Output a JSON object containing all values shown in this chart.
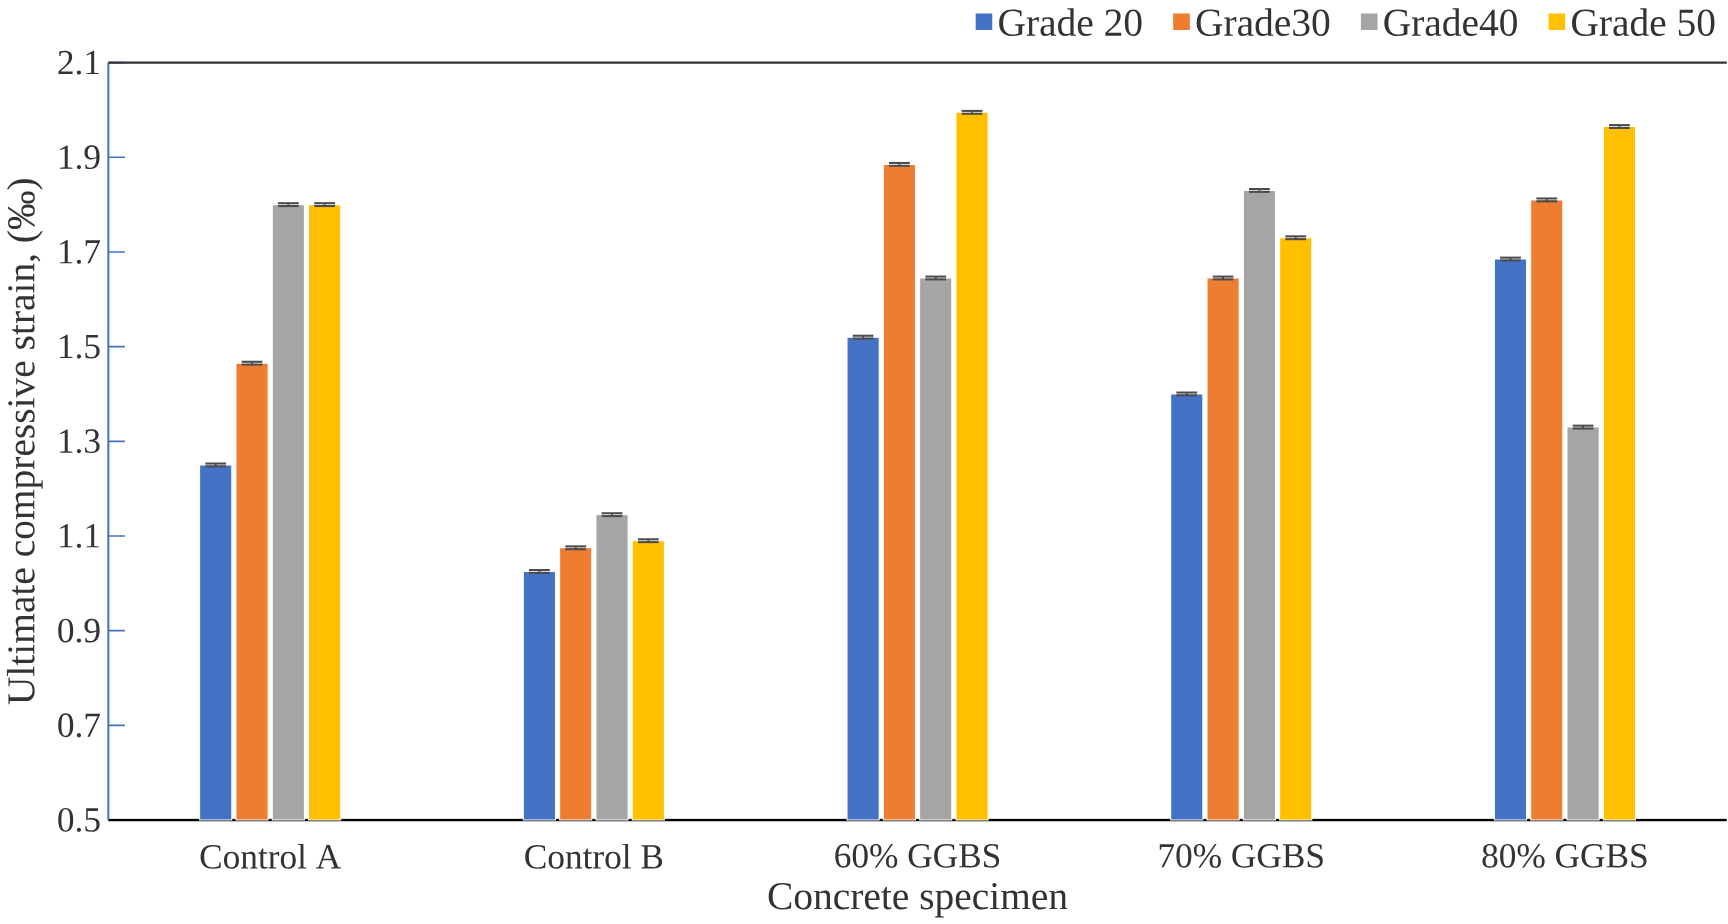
{
  "chart_data": {
    "type": "bar",
    "xlabel": "Concrete specimen",
    "ylabel": "Ultimate compressive strain, (‰)",
    "categories": [
      "Control  A",
      "Control B",
      "60% GGBS",
      "70% GGBS",
      "80% GGBS"
    ],
    "series": [
      {
        "name": "Grade 20",
        "color": "#4472c4",
        "values": [
          1.25,
          1.025,
          1.52,
          1.4,
          1.685
        ],
        "errors": [
          0.003,
          0.003,
          0.003,
          0.003,
          0.003
        ]
      },
      {
        "name": "Grade30",
        "color": "#ed7d31",
        "values": [
          1.465,
          1.075,
          1.885,
          1.645,
          1.81
        ],
        "errors": [
          0.003,
          0.003,
          0.003,
          0.003,
          0.003
        ]
      },
      {
        "name": "Grade40",
        "color": "#a5a5a5",
        "values": [
          1.8,
          1.145,
          1.645,
          1.83,
          1.33
        ],
        "errors": [
          0.003,
          0.003,
          0.003,
          0.003,
          0.003
        ]
      },
      {
        "name": "Grade 50",
        "color": "#ffc000",
        "values": [
          1.8,
          1.09,
          1.995,
          1.73,
          1.965
        ],
        "errors": [
          0.003,
          0.003,
          0.003,
          0.003,
          0.003
        ]
      }
    ],
    "ylim": [
      0.5,
      2.1
    ],
    "yticks": [
      0.5,
      0.7,
      0.9,
      1.1,
      1.3,
      1.5,
      1.7,
      1.9,
      2.1
    ],
    "grid": false,
    "legend": "top right"
  }
}
